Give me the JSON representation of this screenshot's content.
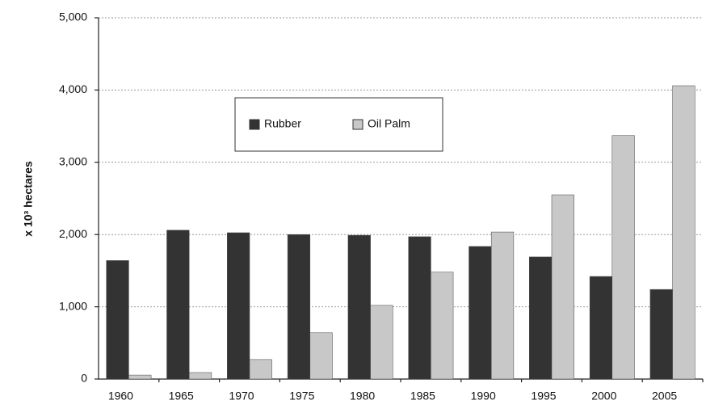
{
  "chart_data": {
    "type": "bar",
    "y_label": "x 10³ hectares",
    "categories": [
      "1960",
      "1965",
      "1970",
      "1975",
      "1980",
      "1985",
      "1990",
      "1995",
      "2000",
      "2005"
    ],
    "series": [
      {
        "name": "Rubber",
        "color": "#333333",
        "values": [
          1640,
          2060,
          2025,
          2000,
          1990,
          1970,
          1835,
          1690,
          1420,
          1240
        ]
      },
      {
        "name": "Oil Palm",
        "color": "#c8c8c8",
        "values": [
          55,
          90,
          270,
          640,
          1020,
          1480,
          2035,
          2550,
          3370,
          4060
        ]
      }
    ],
    "ylim": [
      0,
      5000
    ],
    "yticks": [
      0,
      {
        "value": 1000,
        "label": "1,000"
      },
      {
        "value": 2000,
        "label": "2,000"
      },
      {
        "value": 3000,
        "label": "3,000"
      },
      {
        "value": 4000,
        "label": "4,000"
      },
      {
        "value": 5000,
        "label": "5,000"
      }
    ],
    "grid": true,
    "legend": "top-center"
  }
}
